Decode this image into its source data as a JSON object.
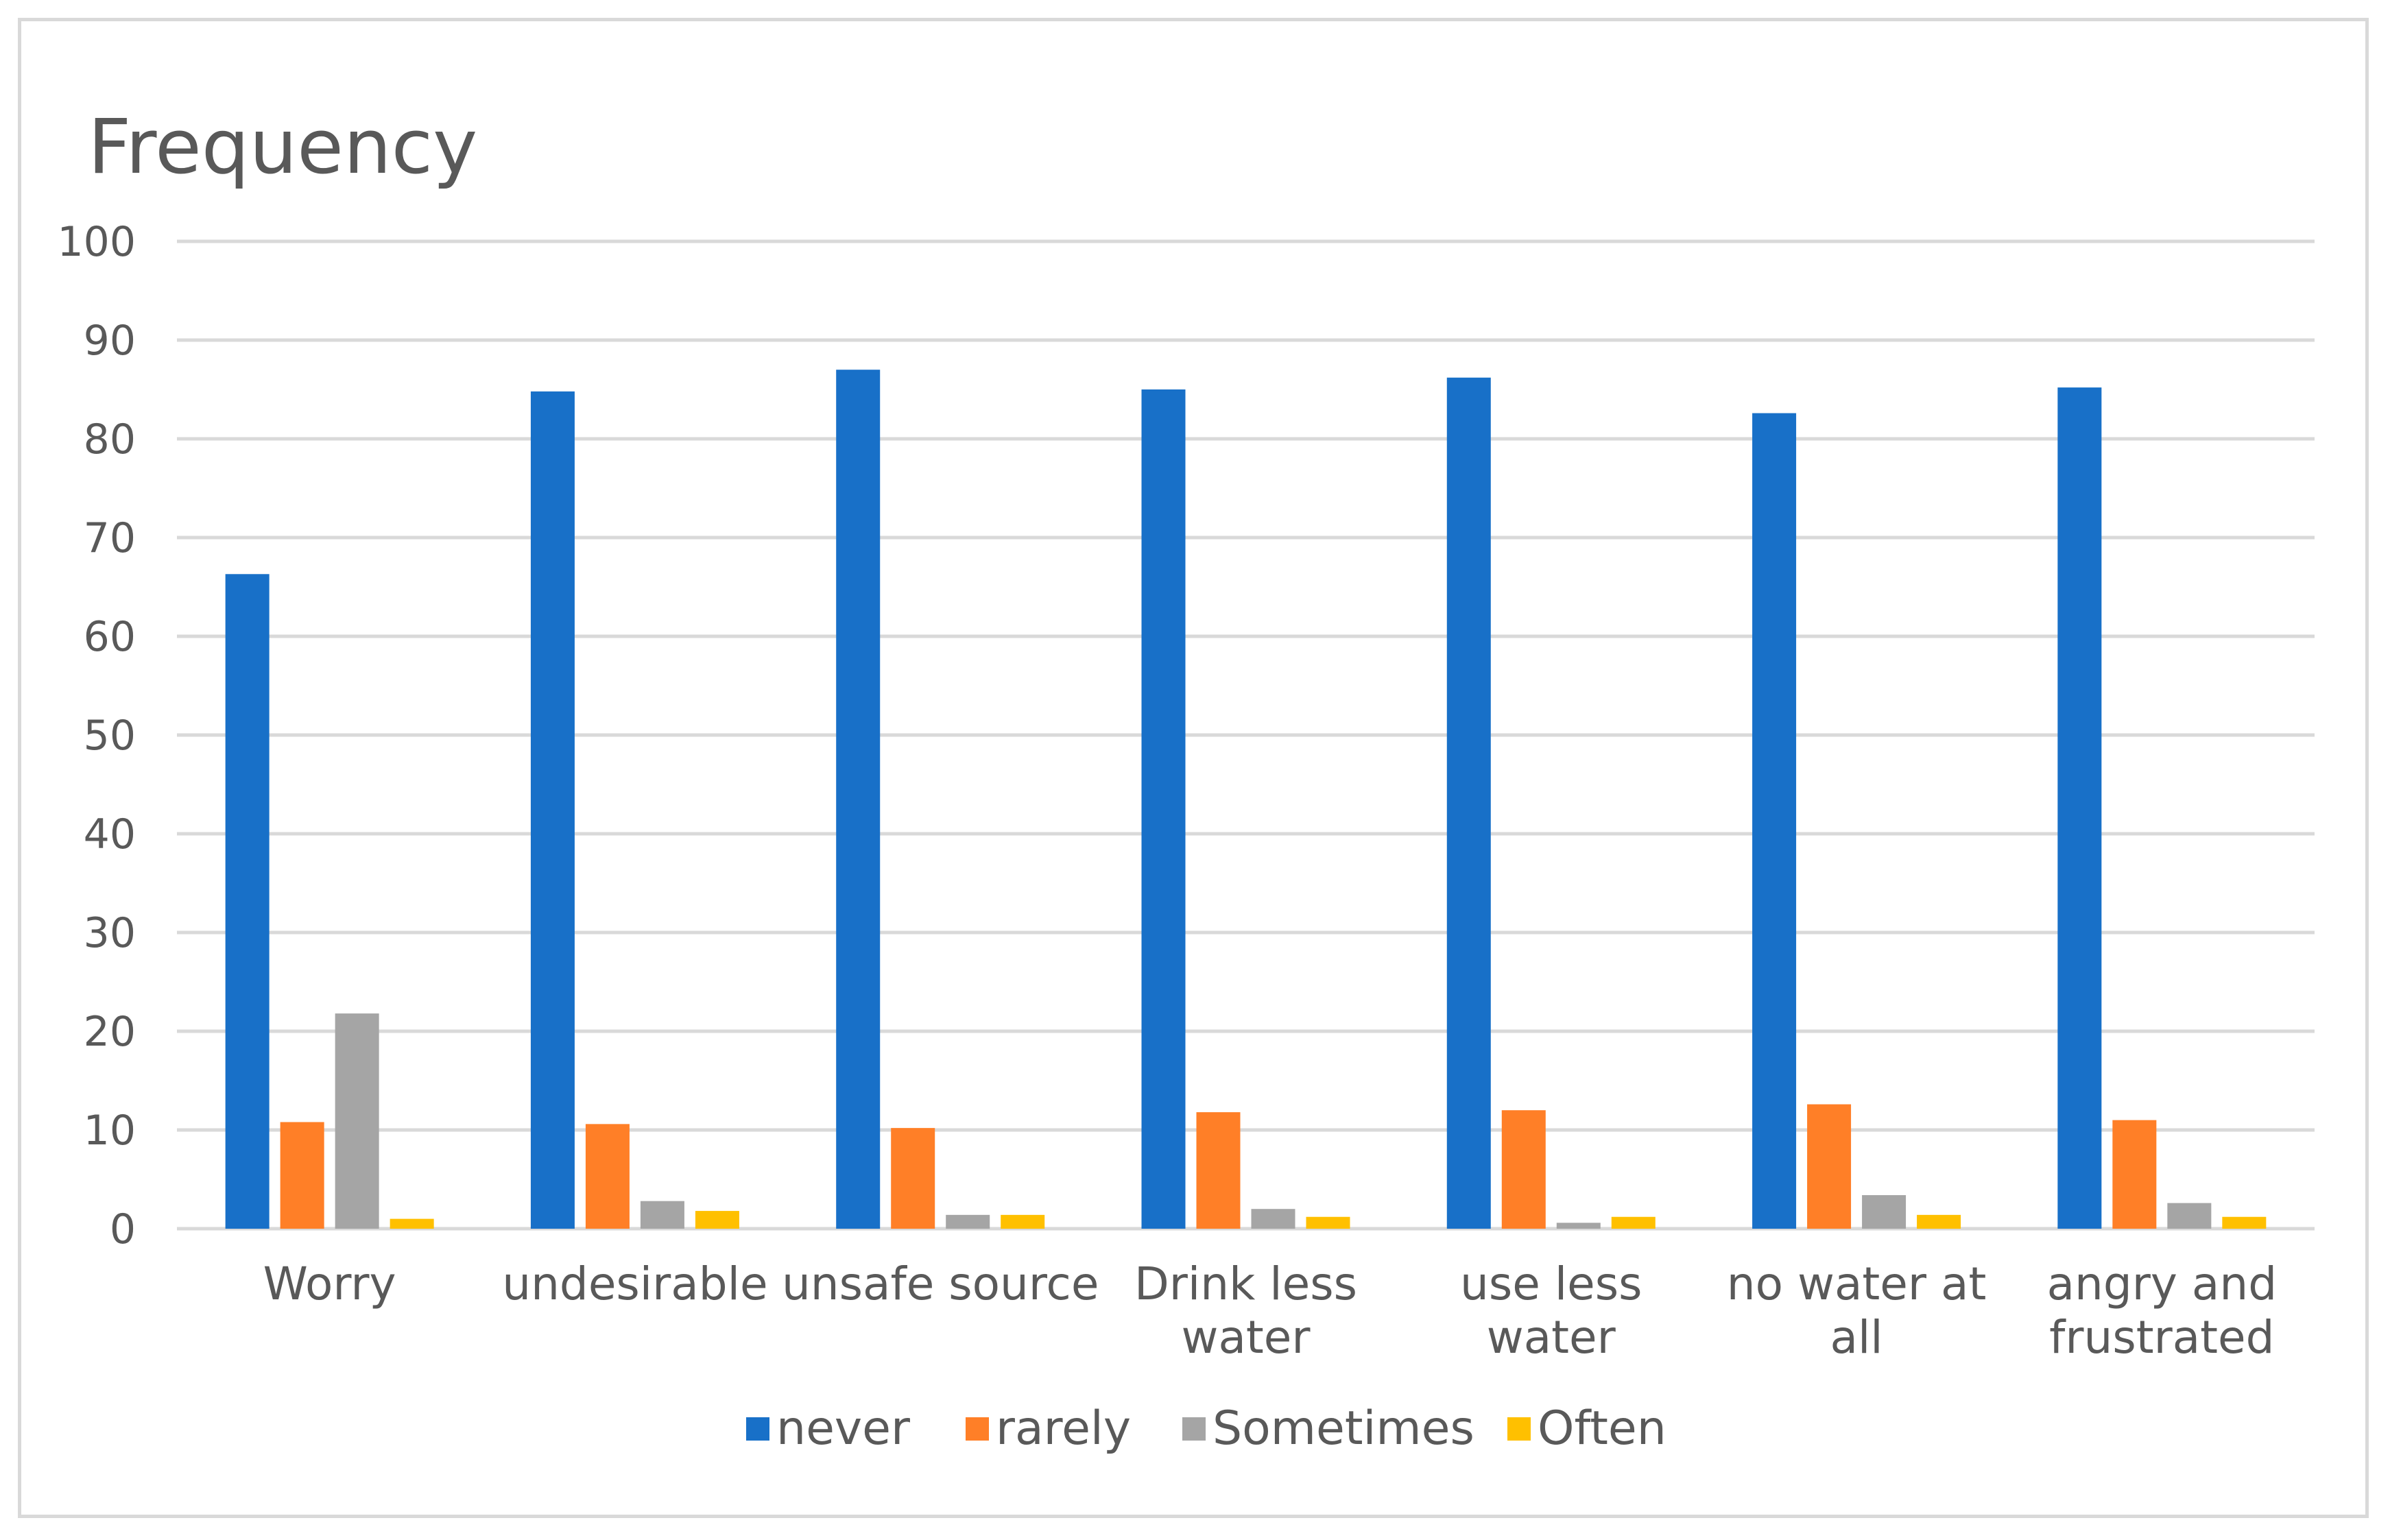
{
  "chart_data": {
    "type": "bar",
    "title": "Frequency",
    "categories": [
      [
        "Worry"
      ],
      [
        "undesirable"
      ],
      [
        "unsafe source"
      ],
      [
        "Drink less",
        "water"
      ],
      [
        "use less",
        "water"
      ],
      [
        "no water at",
        "all"
      ],
      [
        "angry and",
        "frustrated"
      ]
    ],
    "series": [
      {
        "name": "never",
        "color": "#1870C8",
        "values": [
          66.3,
          84.8,
          87.0,
          85.0,
          86.2,
          82.6,
          85.2
        ]
      },
      {
        "name": "rarely",
        "color": "#FF7F27",
        "values": [
          10.8,
          10.6,
          10.2,
          11.8,
          12.0,
          12.6,
          11.0
        ]
      },
      {
        "name": "Sometimes",
        "color": "#A5A5A5",
        "values": [
          21.8,
          2.8,
          1.4,
          2.0,
          0.6,
          3.4,
          2.6
        ]
      },
      {
        "name": "Often",
        "color": "#FFC000",
        "values": [
          1.0,
          1.8,
          1.4,
          1.2,
          1.2,
          1.4,
          1.2
        ]
      }
    ],
    "yticks": [
      "0",
      "10",
      "20",
      "30",
      "40",
      "50",
      "60",
      "70",
      "80",
      "90",
      "100"
    ],
    "ylim": [
      0,
      100
    ],
    "grid": true,
    "legend_position": "bottom"
  }
}
